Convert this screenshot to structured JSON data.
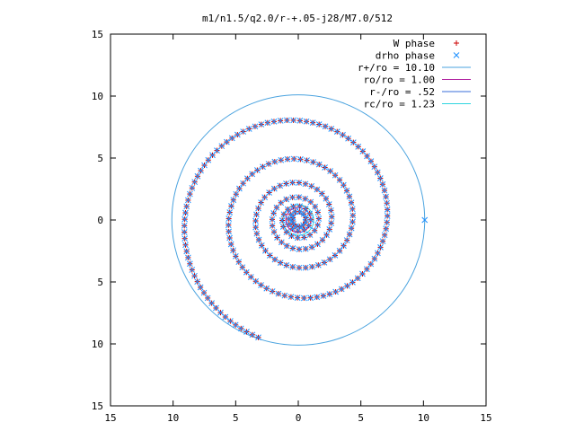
{
  "chart_data": {
    "type": "scatter",
    "title": "m1/n1.5/q2.0/r-+.05-j28/M7.0/512",
    "xlim": [
      -15,
      15
    ],
    "ylim": [
      -15,
      15
    ],
    "x_tick_values": [
      -15,
      -10,
      -5,
      0,
      5,
      10,
      15
    ],
    "y_tick_values": [
      -15,
      -10,
      -5,
      0,
      5,
      10,
      15
    ],
    "x_tick_labels": [
      "15",
      "10",
      "5",
      "0",
      "5",
      "10",
      "15"
    ],
    "y_tick_labels": [
      "15",
      "10",
      "5",
      "0",
      "5",
      "10",
      "15"
    ],
    "grid": false,
    "legend_position": "top-right",
    "series": [
      {
        "name": "W phase",
        "kind": "points",
        "marker": "+",
        "color": "#cc0000",
        "spiral": {
          "b": 0.078,
          "r_min": 0.45,
          "r_max": 10.0,
          "phase_shift": 0.0
        }
      },
      {
        "name": "drho phase",
        "kind": "points",
        "marker": "x",
        "color": "#1e90ff",
        "spiral": {
          "b": 0.078,
          "r_min": 0.45,
          "r_max": 10.0,
          "phase_shift": 0.0
        },
        "extra_point": [
          10.1,
          0.0
        ]
      },
      {
        "name": "r+/ro = 10.10",
        "kind": "circle",
        "radius": 10.1,
        "color": "#4aa3df"
      },
      {
        "name": "ro/ro = 1.00",
        "kind": "circle",
        "radius": 1.0,
        "color": "#b0209f"
      },
      {
        "name": "r-/ro = .52",
        "kind": "circle",
        "radius": 0.52,
        "color": "#3a6ed8"
      },
      {
        "name": "rc/ro = 1.23",
        "kind": "circle",
        "radius": 1.23,
        "color": "#30d5e0"
      }
    ]
  }
}
